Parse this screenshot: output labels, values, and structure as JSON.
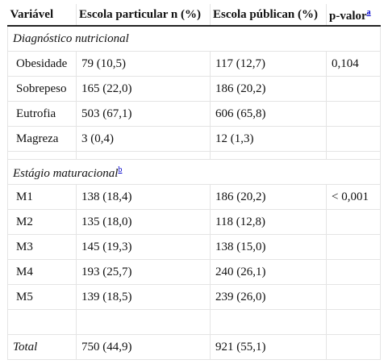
{
  "table": {
    "headers": {
      "col1": "Variável",
      "col2": "Escola particular n (%)",
      "col3": "Escola públican (%)",
      "col4": "p-valor",
      "col4_sup": "a"
    },
    "section_nutritional": {
      "title": "Diagnóstico nutricional",
      "rows": [
        {
          "label": "Obesidade",
          "particular": "79 (10,5)",
          "publica": "117 (12,7)",
          "p": "0,104"
        },
        {
          "label": "Sobrepeso",
          "particular": "165 (22,0)",
          "publica": "186 (20,2)",
          "p": ""
        },
        {
          "label": "Eutrofia",
          "particular": "503 (67,1)",
          "publica": "606 (65,8)",
          "p": ""
        },
        {
          "label": "Magreza",
          "particular": "3 (0,4)",
          "publica": "12 (1,3)",
          "p": ""
        }
      ]
    },
    "section_maturational": {
      "title": "Estágio maturacional",
      "sup": "b",
      "rows": [
        {
          "label": "M1",
          "particular": "138 (18,4)",
          "publica": "186 (20,2)",
          "p": "< 0,001"
        },
        {
          "label": "M2",
          "particular": "135 (18,0)",
          "publica": "118 (12,8)",
          "p": ""
        },
        {
          "label": "M3",
          "particular": "145 (19,3)",
          "publica": "138 (15,0)",
          "p": ""
        },
        {
          "label": "M4",
          "particular": "193 (25,7)",
          "publica": "240 (26,1)",
          "p": ""
        },
        {
          "label": "M5",
          "particular": "139 (18,5)",
          "publica": "239 (26,0)",
          "p": ""
        }
      ]
    },
    "total": {
      "label": "Total",
      "particular": "750 (44,9)",
      "publica": "921 (55,1)",
      "p": ""
    }
  }
}
